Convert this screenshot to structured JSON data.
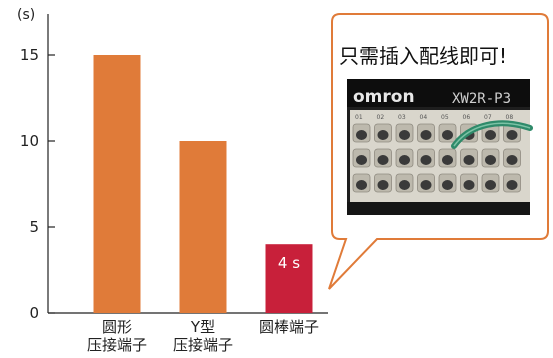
{
  "chart_data": {
    "type": "bar",
    "ylabel": "(s)",
    "ylim": [
      0,
      16
    ],
    "yticks": [
      0,
      5,
      10,
      15
    ],
    "categories": [
      [
        "圆形",
        "压接端子"
      ],
      [
        "Y型",
        "压接端子"
      ],
      [
        "圆棒端子"
      ]
    ],
    "values": [
      15,
      10,
      4
    ],
    "colors": [
      "#e07b39",
      "#e07b39",
      "#c8203a"
    ],
    "data_labels": [
      "",
      "",
      "4 s"
    ],
    "grid": false,
    "legend": "none"
  },
  "callout": {
    "title": "只需插入配线即可!",
    "photo": {
      "brand_text": "omron",
      "model_text": "XW2R-P3",
      "terminal_numbers": [
        "01",
        "02",
        "03",
        "04",
        "05",
        "06",
        "07",
        "08",
        "09",
        "10"
      ]
    },
    "colors": {
      "border": "#e07b39",
      "background": "#ffffff"
    }
  }
}
